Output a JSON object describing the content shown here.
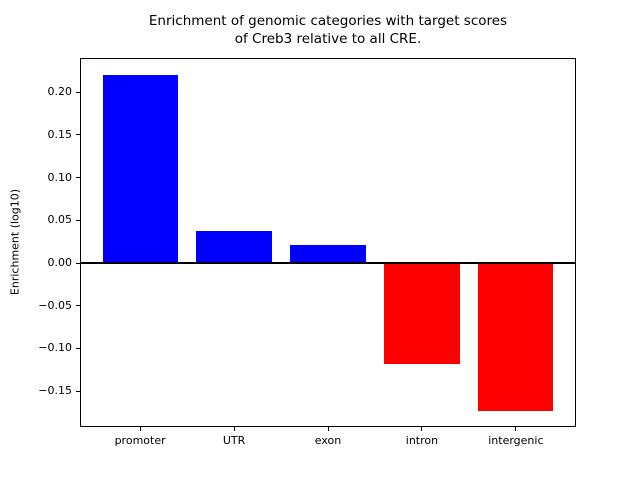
{
  "figure": {
    "background": "#ffffff"
  },
  "title": {
    "line1": "Enrichment of genomic categories with target scores",
    "line2": "of Creb3 relative to all CRE."
  },
  "chart_data": {
    "type": "bar",
    "title": "Enrichment of genomic categories with target scores\nof Creb3 relative to all CRE.",
    "xlabel": "",
    "ylabel": "Enrichment (log10)",
    "categories": [
      "promoter",
      "UTR",
      "exon",
      "intron",
      "intergenic"
    ],
    "values": [
      0.22,
      0.038,
      0.021,
      -0.118,
      -0.173
    ],
    "yticks": [
      0.2,
      0.15,
      0.1,
      0.05,
      0.0,
      -0.05,
      -0.1,
      -0.15
    ],
    "ytick_labels": [
      "0.20",
      "0.15",
      "0.10",
      "0.05",
      "0.00",
      "−0.05",
      "−0.10",
      "−0.15"
    ],
    "ylim": [
      -0.192,
      0.24
    ],
    "xlim": [
      -0.64,
      4.64
    ],
    "bar_width": 0.8,
    "positive_color": "#0000ff",
    "negative_color": "#ff0000",
    "zero_line_color": "#000000",
    "spine_color": "#000000",
    "grid": false,
    "legend": null
  }
}
